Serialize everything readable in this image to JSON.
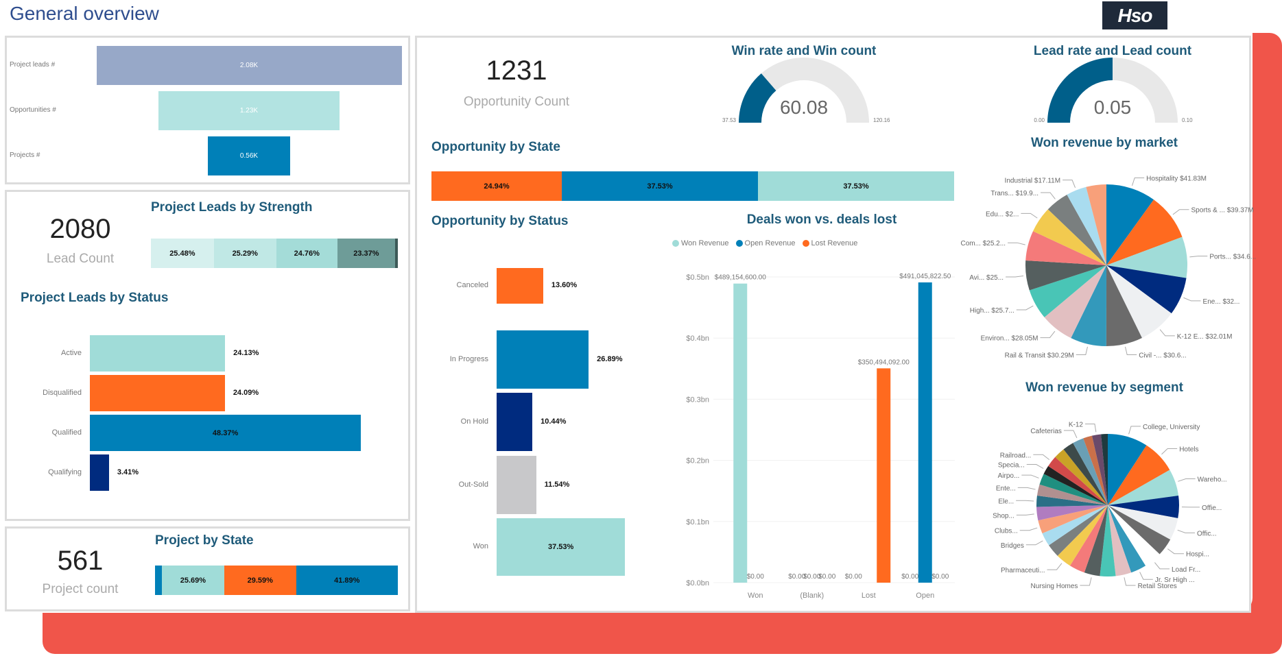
{
  "header": {
    "title": "General overview",
    "logo_text": "Hso"
  },
  "colors": {
    "brand_red": "#f0554a",
    "title_blue": "#1f5b7a",
    "teal": "#a0dcd8",
    "blue": "#0080b8",
    "orange": "#ff6a1f",
    "navy": "#002b7f",
    "gray": "#c8c8ca"
  },
  "funnel": {
    "rows": [
      {
        "label": "Project leads #",
        "value": "2.08K",
        "amount": 2080,
        "color": "#97a8c8"
      },
      {
        "label": "Opportunities #",
        "value": "1.23K",
        "amount": 1231,
        "color": "#b2e3e1"
      },
      {
        "label": "Projects #",
        "value": "0.56K",
        "amount": 561,
        "color": "#0080b8"
      }
    ]
  },
  "leads": {
    "count": "2080",
    "count_label": "Lead Count",
    "strength_title": "Project Leads by Strength",
    "strength": [
      {
        "value": "25.48%",
        "pct": 25.48,
        "color": "#d6f0ee"
      },
      {
        "value": "25.29%",
        "pct": 25.29,
        "color": "#c0e8e5"
      },
      {
        "value": "24.76%",
        "pct": 24.76,
        "color": "#a4dcd8"
      },
      {
        "value": "23.37%",
        "pct": 23.37,
        "color": "#6e9c98"
      }
    ],
    "status_title": "Project Leads by Status",
    "status": [
      {
        "label": "Active",
        "value": "24.13%",
        "pct": 24.13,
        "color": "#a0dcd8"
      },
      {
        "label": "Disqualified",
        "value": "24.09%",
        "pct": 24.09,
        "color": "#ff6a1f"
      },
      {
        "label": "Qualified",
        "value": "48.37%",
        "pct": 48.37,
        "color": "#0080b8"
      },
      {
        "label": "Qualifying",
        "value": "3.41%",
        "pct": 3.41,
        "color": "#002b7f"
      }
    ]
  },
  "projects": {
    "count": "561",
    "count_label": "Project count",
    "state_title": "Project by State",
    "state": [
      {
        "value": "",
        "pct": 2.8,
        "color": "#0080b8"
      },
      {
        "value": "25.69%",
        "pct": 25.69,
        "color": "#a0dcd8"
      },
      {
        "value": "29.59%",
        "pct": 29.59,
        "color": "#ff6a1f"
      },
      {
        "value": "41.89%",
        "pct": 41.89,
        "color": "#0080b8"
      }
    ]
  },
  "opportunity": {
    "count": "1231",
    "count_label": "Opportunity Count",
    "state_title": "Opportunity by State",
    "state": [
      {
        "value": "24.94%",
        "pct": 24.94,
        "color": "#ff6a1f"
      },
      {
        "value": "37.53%",
        "pct": 37.53,
        "color": "#0080b8"
      },
      {
        "value": "37.53%",
        "pct": 37.53,
        "color": "#a0dcd8"
      }
    ],
    "status_title": "Opportunity by Status",
    "status": [
      {
        "label": "Canceled",
        "value": "13.60%",
        "pct": 13.6,
        "color": "#ff6a1f"
      },
      {
        "label": "In Progress",
        "value": "26.89%",
        "pct": 26.89,
        "color": "#0080b8"
      },
      {
        "label": "On Hold",
        "value": "10.44%",
        "pct": 10.44,
        "color": "#002b7f"
      },
      {
        "label": "Out-Sold",
        "value": "11.54%",
        "pct": 11.54,
        "color": "#c8c8ca"
      },
      {
        "label": "Won",
        "value": "37.53%",
        "pct": 37.53,
        "color": "#a0dcd8"
      }
    ]
  },
  "gauges": [
    {
      "title": "Win rate and Win count",
      "value": 60.08,
      "value_label": "60.08",
      "min": 37.53,
      "min_label": "37.53",
      "max": 120.16,
      "max_label": "120.16",
      "color": "#005f8a"
    },
    {
      "title": "Lead rate and Lead count",
      "value": 0.05,
      "value_label": "0.05",
      "min": 0,
      "min_label": "0.00",
      "max": 0.1,
      "max_label": "0.10",
      "color": "#005f8a"
    }
  ],
  "chart_data": [
    {
      "type": "bar",
      "title": "Deals won vs. deals lost",
      "categories": [
        "Won",
        "(Blank)",
        "Lost",
        "Open"
      ],
      "series": [
        {
          "name": "Won Revenue",
          "color": "#a0dcd8",
          "values": [
            489154600,
            0,
            0,
            0
          ],
          "labels": [
            "$489,154,600.00",
            "$0.00",
            "$0.00",
            "$0.00"
          ]
        },
        {
          "name": "Open Revenue",
          "color": "#0080b8",
          "values": [
            0,
            0,
            0,
            491045822.5
          ],
          "labels": [
            "$0.00",
            "$0.00",
            "",
            "$491,045,822.50"
          ]
        },
        {
          "name": "Lost Revenue",
          "color": "#ff6a1f",
          "values": [
            0,
            0,
            350494092,
            0
          ],
          "labels": [
            "",
            "$0.00",
            "$350,494,092.00",
            "$0.00"
          ]
        }
      ],
      "yticks": [
        "$0.0bn",
        "$0.1bn",
        "$0.2bn",
        "$0.3bn",
        "$0.4bn",
        "$0.5bn"
      ],
      "ylim": [
        0,
        500000000
      ],
      "legend": "top-left",
      "grid": true
    },
    {
      "type": "pie",
      "title": "Won revenue by market",
      "slices": [
        {
          "name": "Hospitality",
          "label": "Hospitality $41.83M",
          "value": 41.83,
          "color": "#0080b8"
        },
        {
          "name": "Sports & ...",
          "label": "Sports & ... $39.37M",
          "value": 39.37,
          "color": "#ff6a1f"
        },
        {
          "name": "Ports...",
          "label": "Ports... $34.6...",
          "value": 34.6,
          "color": "#a0dcd8"
        },
        {
          "name": "Ene...",
          "label": "Ene... $32...",
          "value": 32,
          "color": "#002b7f"
        },
        {
          "name": "K-12 E...",
          "label": "K-12 E... $32.01M",
          "value": 32.01,
          "color": "#eef0f2"
        },
        {
          "name": "Civil -...",
          "label": "Civil -... $30.6...",
          "value": 30.6,
          "color": "#6b6b6b"
        },
        {
          "name": "Rail & Transit",
          "label": "Rail & Transit $30.29M",
          "value": 30.29,
          "color": "#3399bb"
        },
        {
          "name": "Environ...",
          "label": "Environ... $28.05M",
          "value": 28.05,
          "color": "#e2bfc1"
        },
        {
          "name": "High...",
          "label": "High... $25.7...",
          "value": 25.7,
          "color": "#49c5b6"
        },
        {
          "name": "Avi...",
          "label": "Avi... $25...",
          "value": 25,
          "color": "#555f5f"
        },
        {
          "name": "Com...",
          "label": "Com... $25.2...",
          "value": 25.2,
          "color": "#f47a7a"
        },
        {
          "name": "Edu...",
          "label": "Edu... $2...",
          "value": 22,
          "color": "#f2ca4f"
        },
        {
          "name": "Trans...",
          "label": "Trans... $19.9...",
          "value": 19.9,
          "color": "#7a7f7f"
        },
        {
          "name": "Industrial",
          "label": "Industrial $17.11M",
          "value": 17.11,
          "color": "#a9dcef"
        },
        {
          "name": "",
          "label": "",
          "value": 17,
          "color": "#f8a07a"
        }
      ]
    },
    {
      "type": "pie",
      "title": "Won revenue by segment",
      "slices": [
        {
          "label": "College, University",
          "value": 9,
          "color": "#0080b8"
        },
        {
          "label": "Hotels",
          "value": 7.5,
          "color": "#ff6a1f"
        },
        {
          "label": "Wareho...",
          "value": 6,
          "color": "#a0dcd8"
        },
        {
          "label": "Offie...",
          "value": 5,
          "color": "#002b7f"
        },
        {
          "label": "Offic...",
          "value": 5,
          "color": "#eef0f2"
        },
        {
          "label": "Hospi...",
          "value": 4,
          "color": "#6b6b6b"
        },
        {
          "label": "Load Fr...",
          "value": 4,
          "color": "#ffffff"
        },
        {
          "label": "Jr. Sr High ...",
          "value": 3.5,
          "color": "#3399bb"
        },
        {
          "label": "Retail Stores",
          "value": 3.5,
          "color": "#e2bfc1"
        },
        {
          "label": "",
          "value": 3.5,
          "color": "#49c5b6"
        },
        {
          "label": "Nursing Homes",
          "value": 3.5,
          "color": "#555f5f"
        },
        {
          "label": "",
          "value": 3.5,
          "color": "#f47a7a"
        },
        {
          "label": "Pharmaceuti...",
          "value": 3.5,
          "color": "#f2ca4f"
        },
        {
          "label": "",
          "value": 3,
          "color": "#7a7f7f"
        },
        {
          "label": "Bridges",
          "value": 3,
          "color": "#a9dcef"
        },
        {
          "label": "Clubs...",
          "value": 3,
          "color": "#f8a07a"
        },
        {
          "label": "Shop...",
          "value": 3,
          "color": "#b07cc0"
        },
        {
          "label": "Ele...",
          "value": 2.5,
          "color": "#2a6f86"
        },
        {
          "label": "Ente...",
          "value": 2.5,
          "color": "#b09090"
        },
        {
          "label": "Airpo...",
          "value": 2.5,
          "color": "#1f8f80"
        },
        {
          "label": "Specia...",
          "value": 2,
          "color": "#222222"
        },
        {
          "label": "Railroad...",
          "value": 2.5,
          "color": "#d24a4a"
        },
        {
          "label": "",
          "value": 2.5,
          "color": "#c9a227"
        },
        {
          "label": "",
          "value": 2.5,
          "color": "#3d4a4a"
        },
        {
          "label": "Cafeterias",
          "value": 2.5,
          "color": "#6a9fb5"
        },
        {
          "label": "",
          "value": 2,
          "color": "#c9704a"
        },
        {
          "label": "K-12",
          "value": 2,
          "color": "#6a4a6a"
        },
        {
          "label": "",
          "value": 1.5,
          "color": "#1f3a3f"
        }
      ]
    }
  ]
}
